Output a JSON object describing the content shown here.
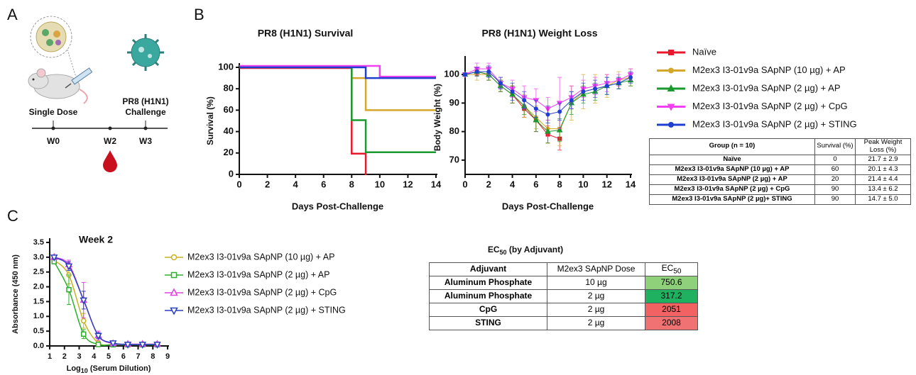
{
  "panel_labels": [
    "A",
    "B",
    "C"
  ],
  "schematic": {
    "dose_label": "Single Dose",
    "challenge_label": [
      "PR8 (H1N1)",
      "Challenge"
    ],
    "timepoints": [
      "W0",
      "W2",
      "W3"
    ]
  },
  "chart_data": [
    {
      "type": "step",
      "title": "PR8 (H1N1) Survival",
      "xlabel": "Days Post-Challenge",
      "ylabel": "Survival (%)",
      "xlim": [
        0,
        14
      ],
      "xticks": [
        0,
        2,
        4,
        6,
        8,
        10,
        12,
        14
      ],
      "ylim": [
        0,
        100
      ],
      "yticks": [
        0,
        20,
        40,
        60,
        80,
        100
      ],
      "series": [
        {
          "name": "Naïve",
          "color": "#e8192c",
          "x": [
            0,
            8,
            9
          ],
          "values": [
            100,
            20,
            0
          ]
        },
        {
          "name": "M2ex3 I3-01v9a SApNP (10 µg) + AP",
          "color": "#d4a62a",
          "x": [
            0,
            8,
            9,
            14
          ],
          "values": [
            100,
            90,
            60,
            60
          ]
        },
        {
          "name": "M2ex3 I3-01v9a SApNP (2 µg) + AP",
          "color": "#1a9a2e",
          "x": [
            0,
            8,
            9,
            14
          ],
          "values": [
            100,
            50,
            20,
            20
          ]
        },
        {
          "name": "M2ex3 I3-01v9a SApNP (2 µg) + CpG",
          "color": "#f040f0",
          "x": [
            0,
            10,
            14
          ],
          "values": [
            100,
            90,
            90
          ]
        },
        {
          "name": "M2ex3 I3-01v9a SApNP (2 µg) + STING",
          "color": "#1f3fd1",
          "x": [
            0,
            9,
            14
          ],
          "values": [
            100,
            90,
            90
          ]
        }
      ]
    },
    {
      "type": "line",
      "title": "PR8 (H1N1) Weight Loss",
      "xlabel": "Days Post-Challenge",
      "ylabel": "Body Weight (%)",
      "xlim": [
        0,
        14
      ],
      "xticks": [
        0,
        2,
        4,
        6,
        8,
        10,
        12,
        14
      ],
      "ylim": [
        65,
        105
      ],
      "yticks": [
        70,
        80,
        90,
        100
      ],
      "marker_fill": "filled",
      "x": [
        0,
        1,
        2,
        3,
        4,
        5,
        6,
        7,
        8,
        9,
        10,
        11,
        12,
        13,
        14
      ],
      "series": [
        {
          "color": "#e8192c",
          "marker": "square",
          "values": [
            100,
            101,
            100,
            96,
            93,
            88,
            84,
            79,
            77.5,
            null,
            null,
            null,
            null,
            null,
            null
          ],
          "errors": [
            0.5,
            1.5,
            2,
            2,
            3,
            3,
            4,
            3,
            4,
            null,
            null,
            null,
            null,
            null,
            null
          ]
        },
        {
          "color": "#d4a62a",
          "marker": "circle",
          "values": [
            100,
            100,
            100,
            96,
            93,
            89,
            85,
            81,
            81,
            90,
            94,
            95,
            96,
            98,
            99
          ],
          "errors": [
            0.5,
            2,
            2,
            2,
            3,
            4,
            4,
            5,
            6,
            6,
            6,
            5,
            4,
            3,
            3
          ]
        },
        {
          "color": "#1a9a2e",
          "marker": "triangle",
          "values": [
            100,
            101,
            100,
            96,
            93,
            89,
            84,
            80,
            80.5,
            90,
            93,
            94,
            96,
            97,
            98
          ],
          "errors": [
            0.5,
            1.5,
            2,
            2,
            3,
            3,
            4,
            4,
            4,
            4,
            3,
            3,
            3,
            2,
            2
          ]
        },
        {
          "color": "#f040f0",
          "marker": "triangle-down",
          "values": [
            100,
            102,
            102,
            97,
            95,
            92,
            91,
            88,
            90,
            92,
            95,
            96,
            97,
            98,
            100
          ],
          "errors": [
            0.5,
            2,
            2,
            2,
            3,
            4,
            4,
            4,
            9,
            4,
            3,
            3,
            3,
            2,
            2
          ]
        },
        {
          "color": "#1f3fd1",
          "marker": "circle",
          "values": [
            100,
            101,
            101,
            97,
            94,
            91,
            88,
            86,
            87,
            91,
            94,
            95,
            96,
            97,
            99
          ],
          "errors": [
            0.5,
            1.5,
            2,
            2,
            3,
            3,
            3,
            3,
            3,
            3,
            3,
            3,
            3,
            2,
            2
          ]
        }
      ]
    },
    {
      "type": "curve",
      "title": "Week 2",
      "xlabel": [
        "Log",
        "10",
        " (Serum Dilution)"
      ],
      "ylabel": "Absorbance (450 nm)",
      "xlim": [
        1,
        9
      ],
      "xticks": [
        1,
        2,
        3,
        4,
        5,
        6,
        7,
        8,
        9
      ],
      "ylim": [
        0,
        3.5
      ],
      "yticks": [
        {
          "value": 0,
          "label": "0.0"
        },
        0.5,
        {
          "value": 1,
          "label": "1.0"
        },
        1.5,
        {
          "value": 2,
          "label": "2.0"
        },
        2.5,
        {
          "value": 3,
          "label": "3.0"
        },
        3.5
      ],
      "marker_fill": "open",
      "x": [
        1.3,
        2.3,
        3.3,
        4.3,
        5.3,
        6.3,
        7.3,
        8.3
      ],
      "series": [
        {
          "name": "M2ex3 I3-01v9a SApNP (10 µg) + AP",
          "color": "#c8b21e",
          "marker": "circle",
          "values": [
            2.9,
            2.4,
            0.85,
            0.1,
            0.05,
            0.05,
            0.05,
            0.05
          ],
          "errors": [
            0.05,
            0.3,
            0.25,
            0.05,
            0.02,
            0.02,
            0.02,
            0.02
          ]
        },
        {
          "name": "M2ex3 I3-01v9a SApNP (2 µg) + AP",
          "color": "#2bb02b",
          "marker": "square",
          "values": [
            2.85,
            1.9,
            0.4,
            0.05,
            0.04,
            0.04,
            0.04,
            0.04
          ],
          "errors": [
            0.05,
            0.5,
            0.15,
            0.03,
            0.02,
            0.02,
            0.02,
            0.02
          ]
        },
        {
          "name": "M2ex3 I3-01v9a SApNP (2 µg) + CpG",
          "color": "#e040e0",
          "marker": "triangle",
          "values": [
            3.0,
            2.75,
            1.55,
            0.35,
            0.08,
            0.06,
            0.06,
            0.06
          ],
          "errors": [
            0.05,
            0.15,
            0.6,
            0.15,
            0.03,
            0.02,
            0.02,
            0.02
          ]
        },
        {
          "name": "M2ex3 I3-01v9a SApNP (2 µg) + STING",
          "color": "#2b3fc0",
          "marker": "triangle-down",
          "values": [
            3.0,
            2.7,
            1.55,
            0.35,
            0.1,
            0.05,
            0.05,
            0.05
          ],
          "errors": [
            0.05,
            0.15,
            0.3,
            0.1,
            0.03,
            0.02,
            0.02,
            0.02
          ]
        }
      ]
    }
  ],
  "survival_table": {
    "header": [
      "Group (n = 10)",
      "Survival (%)",
      "Peak Weight Loss (%)"
    ],
    "rows": [
      [
        "Naïve",
        "0",
        "21.7 ± 2.9"
      ],
      [
        "M2ex3 I3-01v9a SApNP (10 µg) + AP",
        "60",
        "20.1 ± 4.3"
      ],
      [
        "M2ex3 I3-01v9a SApNP (2 µg) + AP",
        "20",
        "21.4 ± 4.4"
      ],
      [
        "M2ex3 I3-01v9a SApNP (2 µg) + CpG",
        "90",
        "13.4 ± 6.2"
      ],
      [
        "M2ex3 I3-01v9a SApNP (2 µg)+ STING",
        "90",
        "14.7 ± 5.0"
      ]
    ]
  },
  "ec50_table": {
    "title": [
      "EC",
      "50",
      " (by Adjuvant)"
    ],
    "header": [
      "Adjuvant",
      "M2ex3 SApNP Dose",
      [
        "EC",
        "50"
      ]
    ],
    "rows": [
      [
        "Aluminum Phosphate",
        "10 µg",
        "750.6"
      ],
      [
        "Aluminum Phosphate",
        "2 µg",
        "317.2"
      ],
      [
        "CpG",
        "2 µg",
        "2051"
      ],
      [
        "STING",
        "2 µg",
        "2008"
      ]
    ],
    "ec50_colors": [
      "#8fd17a",
      "#1fb060",
      "#f26262",
      "#f07272"
    ]
  }
}
